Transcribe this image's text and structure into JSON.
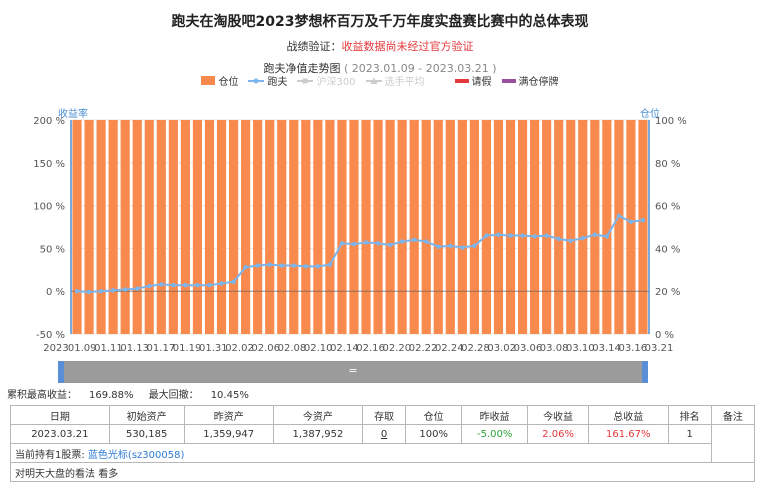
{
  "header": {
    "title": "跑夫在淘股吧2023梦想杯百万及千万年度实盘赛比赛中的总体表现",
    "verify_label": "战绩验证：",
    "verify_value": "收益数据尚未经过官方验证",
    "subtitle_main": "跑夫净值走势图",
    "subtitle_range": "( 2023.01.09 - 2023.03.21 )"
  },
  "legend": [
    {
      "label": "仓位",
      "color": "#f98a4e",
      "kind": "box"
    },
    {
      "label": "跑夫",
      "color": "#7cb5ec",
      "kind": "line"
    },
    {
      "label": "沪深300",
      "color": "#cccccc",
      "kind": "line"
    },
    {
      "label": "选手平均",
      "color": "#cccccc",
      "kind": "line"
    },
    {
      "label": "请假",
      "color": "#e4393c",
      "kind": "bar"
    },
    {
      "label": "满仓停牌",
      "color": "#9b4f9e",
      "kind": "bar"
    }
  ],
  "axis_titles": {
    "left": "收益率",
    "right": "仓位"
  },
  "chart_data": {
    "type": "bar+line",
    "x_start_label": "2023",
    "x_end_label": "03.21",
    "xticks": [
      "01.09",
      "01.11",
      "01.13",
      "01.17",
      "01.19",
      "01.31",
      "02.02",
      "02.06",
      "02.08",
      "02.10",
      "02.14",
      "02.16",
      "02.20",
      "02.22",
      "02.24",
      "02.28",
      "03.02",
      "03.06",
      "03.08",
      "03.10",
      "03.14",
      "03.16"
    ],
    "yleft_ticks": [
      "-50 %",
      "0 %",
      "50 %",
      "100 %",
      "150 %",
      "200 %"
    ],
    "yleft_lim": [
      -50,
      200
    ],
    "yright_ticks": [
      "0 %",
      "20 %",
      "40 %",
      "60 %",
      "80 %",
      "100 %"
    ],
    "yright_lim": [
      0,
      100
    ],
    "position_series": {
      "name": "仓位",
      "color": "#f98a4e",
      "values": [
        100,
        100,
        100,
        100,
        100,
        100,
        100,
        100,
        100,
        100,
        100,
        100,
        100,
        100,
        100,
        100,
        100,
        100,
        100,
        100,
        100,
        100,
        100,
        100,
        100,
        100,
        100,
        100,
        100,
        100,
        100,
        100,
        100,
        100,
        100,
        100,
        100,
        100,
        100,
        100,
        100,
        100,
        100,
        100,
        100,
        100,
        100,
        100
      ]
    },
    "return_series": {
      "name": "跑夫",
      "color": "#7cb5ec",
      "values": [
        0,
        -1,
        0,
        1,
        2,
        3,
        6,
        8,
        7,
        7,
        7,
        7,
        9,
        11,
        28,
        30,
        31,
        30,
        30,
        29,
        29,
        31,
        56,
        55,
        57,
        56,
        54,
        58,
        60,
        58,
        52,
        53,
        51,
        53,
        65,
        66,
        65,
        65,
        64,
        65,
        61,
        59,
        62,
        66,
        64,
        88,
        81,
        83
      ]
    },
    "xlabels_visible": [
      "2023",
      "01.09",
      "01.11",
      "01.13",
      "01.17",
      "01.19",
      "01.31",
      "02.02",
      "02.06",
      "02.08",
      "02.10",
      "02.14",
      "02.16",
      "02.20",
      "02.22",
      "02.24",
      "02.28",
      "03.02",
      "03.06",
      "03.08",
      "03.10",
      "03.14",
      "03.16",
      "03.21"
    ]
  },
  "zoom": {
    "grip": "="
  },
  "stats": {
    "max_return_label": "累积最高收益：",
    "max_return": "169.88%",
    "max_drawdown_label": "最大回撤：",
    "max_drawdown": "10.45%"
  },
  "table": {
    "headers": [
      "日期",
      "初始资产",
      "昨资产",
      "今资产",
      "存取",
      "仓位",
      "昨收益",
      "今收益",
      "总收益",
      "排名",
      "备注"
    ],
    "row": [
      "2023.03.21",
      "530,185",
      "1,359,947",
      "1,387,952",
      "0",
      "100%",
      "-5.00%",
      "2.06%",
      "161.67%",
      "1",
      ""
    ],
    "holding_label": "当前持有1股票:",
    "holding_stock": "蓝色光标(sz300058)",
    "outlook_label": "对明天大盘的看法",
    "outlook_value": "看多"
  }
}
